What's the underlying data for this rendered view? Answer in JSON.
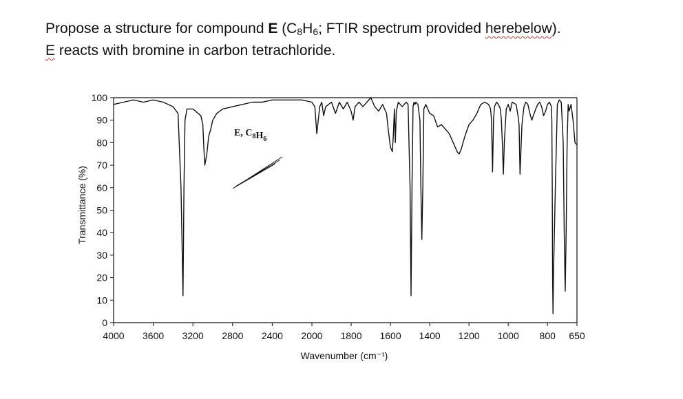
{
  "question": {
    "line1_pre": "Propose a structure for compound ",
    "line1_bold": "E",
    "line1_formula_open": " (C",
    "line1_sub1": "8",
    "line1_mid": "H",
    "line1_sub2": "6",
    "line1_post": "; FTIR spectrum provided ",
    "line1_flagged": "herebelow",
    "line1_end": ").",
    "line2_flagged": "E",
    "line2_rest": " reacts with bromine in carbon tetrachloride."
  },
  "chart_data": {
    "type": "line",
    "title": "E, C₈H₆",
    "xlabel": "Wavenumber (cm⁻¹)",
    "ylabel": "Transmittance (%)",
    "x_ticks": [
      4000,
      3600,
      3200,
      2800,
      2400,
      2000,
      1800,
      1600,
      1400,
      1200,
      1000,
      800,
      650
    ],
    "y_ticks": [
      0,
      10,
      20,
      30,
      40,
      50,
      60,
      70,
      80,
      90,
      100
    ],
    "ylim": [
      0,
      100
    ],
    "xlim": [
      4000,
      650
    ],
    "x_axis_note": "scale changes at 2000 cm-1 (reversed axis)",
    "grid": false,
    "series": [
      {
        "x": [
          4000,
          3900,
          3800,
          3700,
          3600,
          3500,
          3400,
          3350,
          3320,
          3300,
          3290,
          3280,
          3260,
          3200,
          3120,
          3100,
          3090,
          3080,
          3060,
          3040,
          3020,
          3000,
          2960,
          2900,
          2800,
          2700,
          2600,
          2500,
          2400,
          2300,
          2200,
          2100,
          2000,
          1985,
          1975,
          1960,
          1950,
          1940,
          1930,
          1900,
          1880,
          1860,
          1840,
          1820,
          1800,
          1790,
          1780,
          1760,
          1740,
          1720,
          1700,
          1680,
          1660,
          1640,
          1630,
          1620,
          1610,
          1600,
          1590,
          1585,
          1580,
          1575,
          1570,
          1560,
          1550,
          1540,
          1520,
          1510,
          1500,
          1495,
          1490,
          1485,
          1480,
          1475,
          1470,
          1460,
          1450,
          1445,
          1440,
          1435,
          1430,
          1420,
          1410,
          1400,
          1380,
          1360,
          1340,
          1320,
          1300,
          1280,
          1260,
          1250,
          1240,
          1220,
          1200,
          1180,
          1160,
          1150,
          1140,
          1120,
          1100,
          1090,
          1085,
          1080,
          1075,
          1070,
          1060,
          1050,
          1040,
          1035,
          1030,
          1025,
          1020,
          1010,
          1000,
          990,
          980,
          960,
          950,
          945,
          940,
          930,
          920,
          910,
          900,
          890,
          880,
          860,
          850,
          840,
          830,
          820,
          810,
          800,
          790,
          780,
          778,
          776,
          774,
          772,
          770,
          760,
          750,
          740,
          730,
          720,
          715,
          710,
          705,
          700,
          695,
          690,
          680,
          670,
          660,
          650
        ],
        "y": [
          97,
          98,
          99,
          98,
          99,
          98,
          96,
          93,
          60,
          12,
          60,
          90,
          95,
          95,
          92,
          88,
          78,
          70,
          75,
          83,
          86,
          90,
          93,
          95,
          96,
          97,
          98,
          98,
          99,
          99,
          99,
          99,
          98,
          96,
          84,
          96,
          98,
          92,
          96,
          98,
          93,
          98,
          95,
          98,
          94,
          90,
          96,
          98,
          96,
          98,
          100,
          96,
          94,
          97,
          95,
          93,
          85,
          78,
          76,
          84,
          95,
          80,
          94,
          98,
          97,
          96,
          98,
          97,
          60,
          12,
          60,
          96,
          98,
          97,
          98,
          97,
          90,
          60,
          37,
          60,
          95,
          97,
          95,
          93,
          92,
          87,
          88,
          86,
          84,
          80,
          76,
          75,
          77,
          83,
          88,
          90,
          93,
          95,
          97,
          98,
          97,
          95,
          90,
          67,
          90,
          96,
          98,
          97,
          95,
          90,
          80,
          66,
          80,
          95,
          97,
          94,
          98,
          97,
          92,
          88,
          66,
          88,
          96,
          98,
          97,
          93,
          90,
          95,
          97,
          98,
          96,
          92,
          94,
          97,
          98,
          96,
          90,
          60,
          20,
          4,
          20,
          60,
          97,
          99,
          98,
          80,
          40,
          14,
          40,
          80,
          97,
          94,
          97,
          90,
          80,
          79
        ]
      }
    ]
  }
}
